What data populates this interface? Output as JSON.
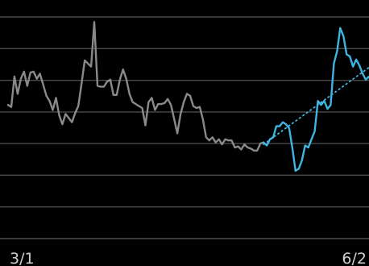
{
  "chart_data": {
    "type": "line",
    "title": "",
    "xlabel": "",
    "ylabel": "",
    "x_tick_labels": [
      "3/1",
      "6/2"
    ],
    "x_range": [
      0,
      113
    ],
    "y_range": [
      0,
      100
    ],
    "grid": {
      "horizontal": true,
      "vertical": false,
      "levels": [
        0,
        14.3,
        28.6,
        42.9,
        57.1,
        71.4,
        85.7,
        100
      ]
    },
    "legend": "none",
    "colors": {
      "background": "#000000",
      "grid": "#4a4a4a",
      "history": "#8a8a8a",
      "recent": "#3fb5e0",
      "trend": "#3fb5e0",
      "tick_label": "#cfcfcf"
    },
    "series": [
      {
        "style": "solid",
        "color": "#8a8a8a",
        "x": [
          0,
          1,
          2,
          3,
          4,
          5,
          6,
          7,
          8,
          9,
          10,
          11,
          12,
          13,
          14,
          15,
          16,
          17,
          18,
          19,
          20,
          21,
          22,
          23,
          24,
          25,
          26,
          27,
          28,
          29,
          30,
          31,
          32,
          33,
          34,
          35,
          36,
          37,
          38,
          39,
          40,
          41,
          42,
          43,
          44,
          45,
          46,
          47,
          48,
          49,
          50,
          51,
          52,
          53,
          54,
          55,
          56,
          57,
          58,
          59,
          60,
          61,
          62,
          63,
          64,
          65,
          66,
          67,
          68,
          69,
          70,
          71,
          72,
          73,
          74,
          75,
          76,
          77,
          78,
          79,
          80
        ],
        "y": [
          60.3,
          59.4,
          73.1,
          65.3,
          72.1,
          75.3,
          68.9,
          74.9,
          75.3,
          72.1,
          74.4,
          69.4,
          64.4,
          62.1,
          58.0,
          63.5,
          55.7,
          51.6,
          56.2,
          54.4,
          52.5,
          56.6,
          59.8,
          69.9,
          80.4,
          79.0,
          77.6,
          97.7,
          68.9,
          68.5,
          68.5,
          70.8,
          71.7,
          64.8,
          64.8,
          71.7,
          76.3,
          72.1,
          65.3,
          61.6,
          60.7,
          59.8,
          58.9,
          51.1,
          61.6,
          63.5,
          58.0,
          60.7,
          60.7,
          61.2,
          63.0,
          60.3,
          53.9,
          47.5,
          56.2,
          61.6,
          65.3,
          64.4,
          59.8,
          58.9,
          59.4,
          53.9,
          45.7,
          44.3,
          45.7,
          43.4,
          44.8,
          42.5,
          44.8,
          44.3,
          44.3,
          41.1,
          41.6,
          40.2,
          42.5,
          41.1,
          40.6,
          39.7,
          39.7,
          42.9,
          43.4
        ]
      },
      {
        "style": "solid",
        "color": "#3fb5e0",
        "x": [
          80,
          81,
          82,
          83,
          84,
          85,
          86,
          87,
          88,
          89,
          90,
          91,
          92,
          93,
          94,
          95,
          96,
          97,
          98,
          99,
          100,
          101,
          102,
          103,
          104,
          105,
          106,
          107,
          108,
          109,
          110,
          111,
          112,
          113
        ],
        "y": [
          43.4,
          42.0,
          44.8,
          45.7,
          50.7,
          50.7,
          52.5,
          51.6,
          49.8,
          41.1,
          30.6,
          31.5,
          35.2,
          42.0,
          41.1,
          44.8,
          48.4,
          62.1,
          60.3,
          62.1,
          58.5,
          60.3,
          79.0,
          84.5,
          95.0,
          91.3,
          83.1,
          82.2,
          77.6,
          80.8,
          78.1,
          74.4,
          71.7,
          73.1
        ]
      },
      {
        "style": "dotted",
        "color": "#3fb5e0",
        "x": [
          80,
          113
        ],
        "y": [
          42.5,
          77.2
        ]
      }
    ]
  }
}
